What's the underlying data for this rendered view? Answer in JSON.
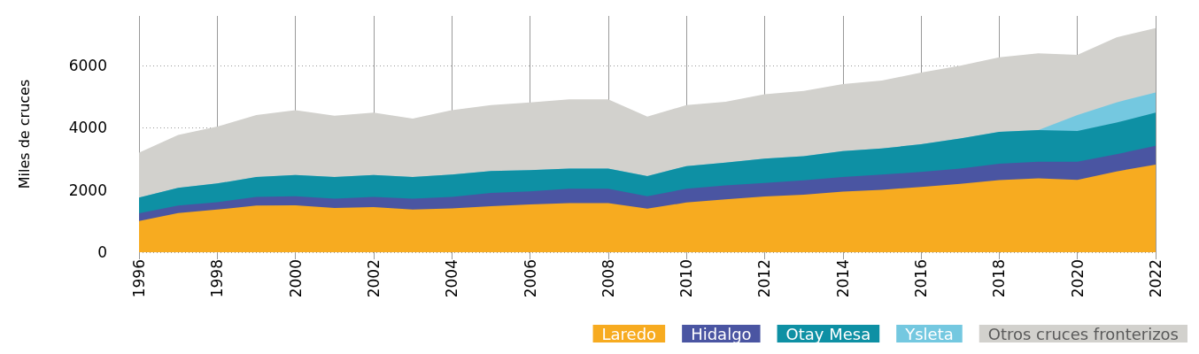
{
  "chart_data": {
    "type": "area",
    "stacked": true,
    "ylabel": "Miles de cruces",
    "x": [
      1996,
      1997,
      1998,
      1999,
      2000,
      2001,
      2002,
      2003,
      2004,
      2005,
      2006,
      2007,
      2008,
      2009,
      2010,
      2011,
      2012,
      2013,
      2014,
      2015,
      2016,
      2017,
      2018,
      2019,
      2020,
      2021,
      2022
    ],
    "series": [
      {
        "name": "Laredo",
        "color": "#f7ab20",
        "values": [
          1000,
          1260,
          1370,
          1500,
          1510,
          1420,
          1450,
          1370,
          1410,
          1480,
          1540,
          1580,
          1580,
          1400,
          1600,
          1700,
          1790,
          1850,
          1950,
          2010,
          2100,
          2200,
          2320,
          2380,
          2330,
          2600,
          2820
        ]
      },
      {
        "name": "Hidalgo",
        "color": "#4a55a2",
        "values": [
          250,
          240,
          240,
          280,
          290,
          300,
          330,
          350,
          370,
          430,
          420,
          460,
          460,
          400,
          440,
          450,
          440,
          460,
          470,
          490,
          480,
          490,
          530,
          530,
          580,
          550,
          600
        ]
      },
      {
        "name": "Otay Mesa",
        "color": "#0e90a4",
        "values": [
          510,
          570,
          600,
          640,
          680,
          700,
          700,
          700,
          720,
          700,
          680,
          650,
          650,
          650,
          730,
          730,
          780,
          780,
          830,
          840,
          890,
          970,
          1020,
          1020,
          990,
          1020,
          1070
        ]
      },
      {
        "name": "Ysleta",
        "color": "#74c8e0",
        "values": [
          0,
          0,
          0,
          0,
          0,
          0,
          0,
          0,
          0,
          0,
          0,
          0,
          0,
          0,
          0,
          0,
          0,
          0,
          0,
          0,
          0,
          0,
          0,
          0,
          510,
          650,
          650
        ]
      },
      {
        "name": "Otros cruces fronterizos",
        "color": "#d2d1cd",
        "values": [
          1440,
          1700,
          1830,
          1990,
          2090,
          1970,
          2010,
          1880,
          2070,
          2120,
          2180,
          2230,
          2230,
          1910,
          1960,
          1960,
          2070,
          2100,
          2160,
          2180,
          2310,
          2340,
          2400,
          2470,
          1940,
          2090,
          2070
        ]
      }
    ],
    "xlim": [
      1996,
      2022
    ],
    "xticks": [
      1996,
      1998,
      2000,
      2002,
      2004,
      2006,
      2008,
      2010,
      2012,
      2014,
      2016,
      2018,
      2020,
      2022
    ],
    "ylim": [
      0,
      7600
    ],
    "yticks": [
      0,
      2000,
      4000,
      6000
    ],
    "grid": true,
    "legend": "bottom right"
  }
}
